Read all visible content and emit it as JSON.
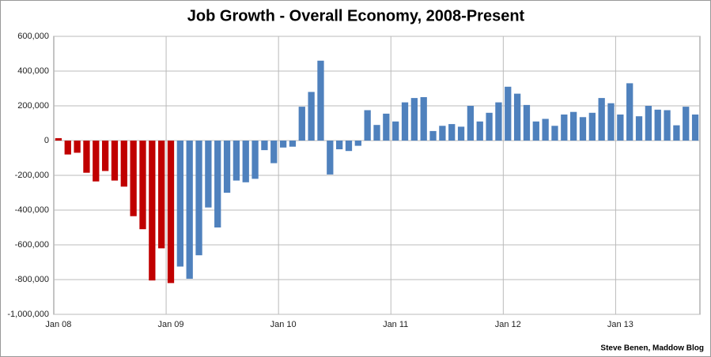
{
  "chart_data": {
    "type": "bar",
    "title": "Job Growth - Overall Economy, 2008-Present",
    "credit": "Steve Benen, Maddow Blog",
    "categories": [
      "Jan 08",
      null,
      null,
      null,
      null,
      null,
      null,
      null,
      null,
      null,
      null,
      null,
      "Jan 09",
      null,
      null,
      null,
      null,
      null,
      null,
      null,
      null,
      null,
      null,
      null,
      "Jan 10",
      null,
      null,
      null,
      null,
      null,
      null,
      null,
      null,
      null,
      null,
      null,
      "Jan 11",
      null,
      null,
      null,
      null,
      null,
      null,
      null,
      null,
      null,
      null,
      null,
      "Jan 12",
      null,
      null,
      null,
      null,
      null,
      null,
      null,
      null,
      null,
      null,
      null,
      "Jan 13",
      null,
      null,
      null,
      null,
      null,
      null,
      null,
      null
    ],
    "values": [
      14000,
      -80000,
      -70000,
      -185000,
      -235000,
      -175000,
      -230000,
      -265000,
      -435000,
      -510000,
      -805000,
      -620000,
      -820000,
      -725000,
      -795000,
      -660000,
      -385000,
      -500000,
      -300000,
      -230000,
      -240000,
      -220000,
      -55000,
      -130000,
      -40000,
      -35000,
      195000,
      280000,
      460000,
      -195000,
      -50000,
      -60000,
      -30000,
      175000,
      90000,
      155000,
      110000,
      220000,
      245000,
      250000,
      55000,
      85000,
      95000,
      80000,
      200000,
      110000,
      160000,
      220000,
      310000,
      270000,
      205000,
      110000,
      125000,
      85000,
      150000,
      165000,
      135000,
      160000,
      245000,
      215000,
      150000,
      330000,
      140000,
      200000,
      178000,
      175000,
      88000,
      195000,
      150000
    ],
    "colors": [
      "#c00000",
      "#c00000",
      "#c00000",
      "#c00000",
      "#c00000",
      "#c00000",
      "#c00000",
      "#c00000",
      "#c00000",
      "#c00000",
      "#c00000",
      "#c00000",
      "#c00000",
      "#4f81bd",
      "#4f81bd",
      "#4f81bd",
      "#4f81bd",
      "#4f81bd",
      "#4f81bd",
      "#4f81bd",
      "#4f81bd",
      "#4f81bd",
      "#4f81bd",
      "#4f81bd",
      "#4f81bd",
      "#4f81bd",
      "#4f81bd",
      "#4f81bd",
      "#4f81bd",
      "#4f81bd",
      "#4f81bd",
      "#4f81bd",
      "#4f81bd",
      "#4f81bd",
      "#4f81bd",
      "#4f81bd",
      "#4f81bd",
      "#4f81bd",
      "#4f81bd",
      "#4f81bd",
      "#4f81bd",
      "#4f81bd",
      "#4f81bd",
      "#4f81bd",
      "#4f81bd",
      "#4f81bd",
      "#4f81bd",
      "#4f81bd",
      "#4f81bd",
      "#4f81bd",
      "#4f81bd",
      "#4f81bd",
      "#4f81bd",
      "#4f81bd",
      "#4f81bd",
      "#4f81bd",
      "#4f81bd",
      "#4f81bd",
      "#4f81bd",
      "#4f81bd",
      "#4f81bd",
      "#4f81bd",
      "#4f81bd",
      "#4f81bd",
      "#4f81bd",
      "#4f81bd",
      "#4f81bd",
      "#4f81bd",
      "#4f81bd"
    ],
    "ylim": [
      -1000000,
      600000
    ],
    "yticks": [
      {
        "value": -1000000,
        "label": "-1,000,000"
      },
      {
        "value": -800000,
        "label": "-800,000"
      },
      {
        "value": -600000,
        "label": "-600,000"
      },
      {
        "value": -400000,
        "label": "-400,000"
      },
      {
        "value": -200000,
        "label": "-200,000"
      },
      0,
      {
        "value": 200000,
        "label": "200,000"
      },
      {
        "value": 400000,
        "label": "400,000"
      },
      {
        "value": 600000,
        "label": "600,000"
      }
    ],
    "grid": true
  }
}
